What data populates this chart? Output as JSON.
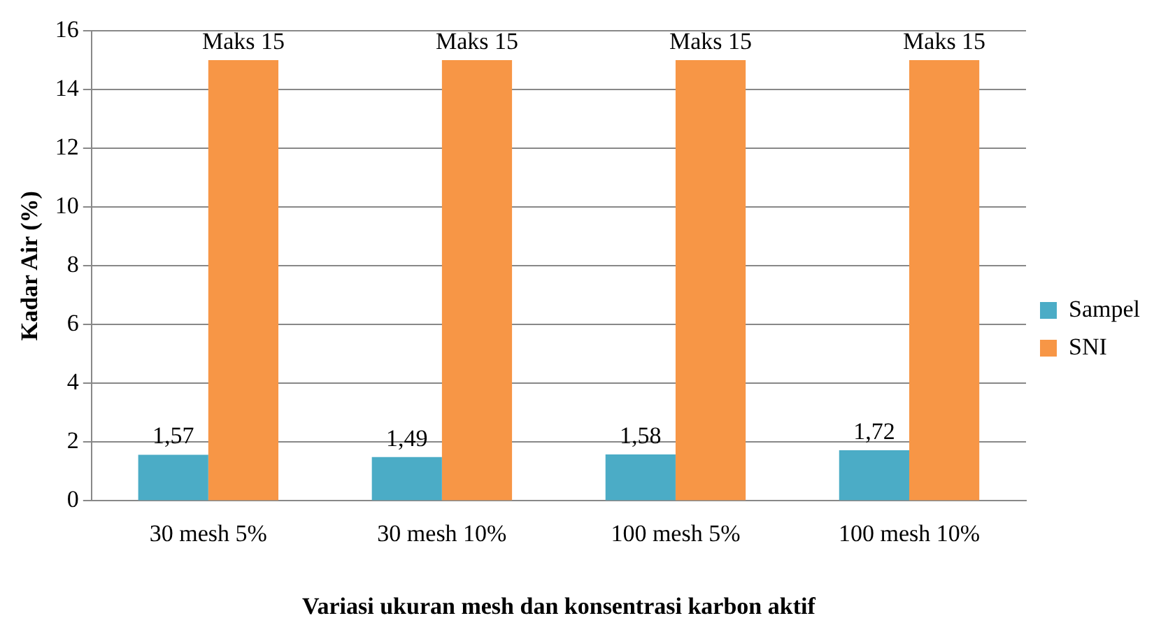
{
  "chart_data": {
    "type": "bar",
    "xlabel": "Variasi ukuran mesh dan konsentrasi karbon aktif",
    "ylabel": "Kadar Air (%)",
    "categories": [
      "30 mesh 5%",
      "30 mesh 10%",
      "100 mesh 5%",
      "100 mesh 10%"
    ],
    "series": [
      {
        "name": "Sampel",
        "color": "#4bacc6",
        "values": [
          1.57,
          1.49,
          1.58,
          1.72
        ],
        "value_labels": [
          "1,57",
          "1,49",
          "1,58",
          "1,72"
        ]
      },
      {
        "name": "SNI",
        "color": "#f79646",
        "values": [
          15,
          15,
          15,
          15
        ],
        "value_labels": [
          "Maks 15",
          "Maks 15",
          "Maks 15",
          "Maks 15"
        ]
      }
    ],
    "ylim": [
      0,
      16
    ],
    "yticks": [
      0,
      2,
      4,
      6,
      8,
      10,
      12,
      14,
      16
    ],
    "grid": "y",
    "legend": "right"
  }
}
